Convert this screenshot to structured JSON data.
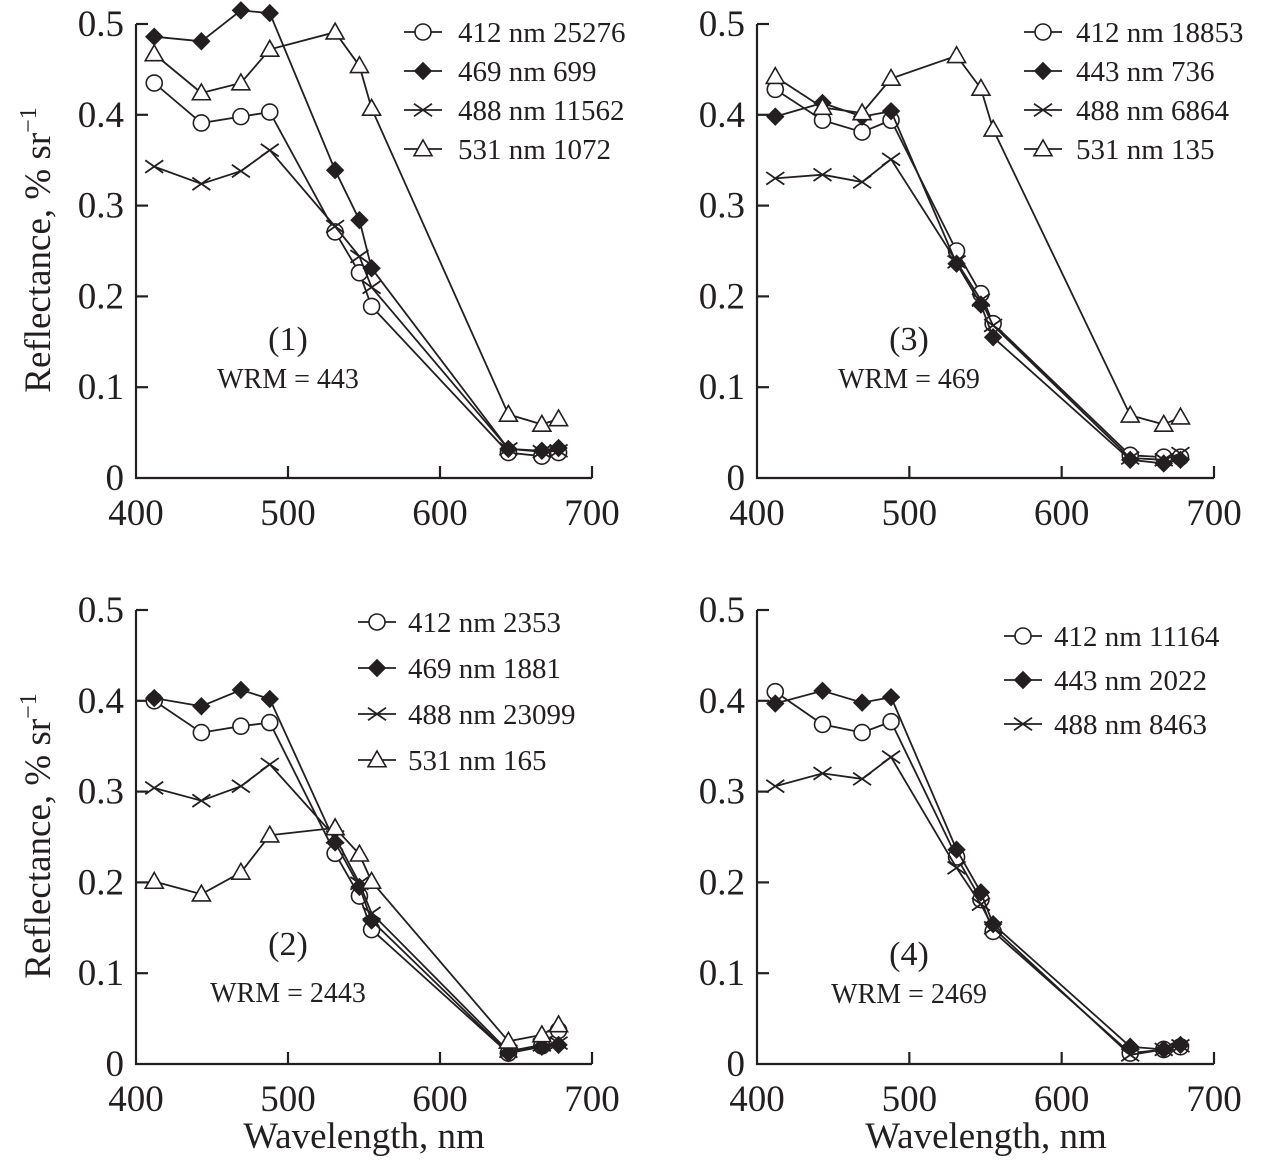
{
  "chart_data": [
    {
      "type": "line",
      "panel_label": "(1)",
      "annotation": "WRM = 443",
      "xlabel": "",
      "ylabel": "Reflectance, % sr",
      "ylabel_superscript": "−1",
      "xlim": [
        400,
        700
      ],
      "ylim": [
        0,
        0.5
      ],
      "xticks": [
        "400",
        "500",
        "600",
        "700"
      ],
      "yticks": [
        "0",
        "0.1",
        "0.2",
        "0.3",
        "0.4",
        "0.5"
      ],
      "legend_position": "top-right",
      "x": [
        412,
        443,
        469,
        488,
        531,
        547,
        555,
        645,
        667,
        678
      ],
      "series": [
        {
          "name": "412 nm 25276",
          "marker": "circle",
          "values": [
            0.435,
            0.391,
            0.398,
            0.403,
            0.271,
            0.226,
            0.189,
            0.028,
            0.024,
            0.028
          ]
        },
        {
          "name": "469 nm 699",
          "marker": "diamond",
          "values": [
            0.486,
            0.481,
            0.515,
            0.512,
            0.339,
            0.284,
            0.231,
            0.032,
            0.03,
            0.033
          ]
        },
        {
          "name": "488 nm 11562",
          "marker": "x",
          "values": [
            0.343,
            0.324,
            0.338,
            0.361,
            0.277,
            0.244,
            0.21,
            0.032,
            0.029,
            0.03
          ]
        },
        {
          "name": "531 nm 1072",
          "marker": "triangle",
          "values": [
            0.467,
            0.424,
            0.435,
            0.472,
            0.491,
            0.454,
            0.407,
            0.07,
            0.059,
            0.065
          ]
        }
      ]
    },
    {
      "type": "line",
      "panel_label": "(3)",
      "annotation": "WRM = 469",
      "xlabel": "",
      "ylabel": "",
      "xlim": [
        400,
        700
      ],
      "ylim": [
        0,
        0.5
      ],
      "xticks": [
        "400",
        "500",
        "600",
        "700"
      ],
      "yticks": [
        "0",
        "0.1",
        "0.2",
        "0.3",
        "0.4",
        "0.5"
      ],
      "legend_position": "top-right",
      "x": [
        412,
        443,
        469,
        488,
        531,
        547,
        555,
        645,
        667,
        678
      ],
      "series": [
        {
          "name": "412 nm 18853",
          "marker": "circle",
          "values": [
            0.428,
            0.394,
            0.381,
            0.394,
            0.25,
            0.203,
            0.17,
            0.025,
            0.023,
            0.023
          ]
        },
        {
          "name": "443 nm 736",
          "marker": "diamond",
          "values": [
            0.398,
            0.413,
            0.398,
            0.404,
            0.236,
            0.191,
            0.155,
            0.02,
            0.016,
            0.02
          ]
        },
        {
          "name": "488 nm 6864",
          "marker": "x",
          "values": [
            0.33,
            0.334,
            0.326,
            0.351,
            0.238,
            0.196,
            0.168,
            0.022,
            0.02,
            0.027
          ]
        },
        {
          "name": "531 nm 135",
          "marker": "triangle",
          "values": [
            0.442,
            0.408,
            0.402,
            0.44,
            0.465,
            0.429,
            0.384,
            0.069,
            0.059,
            0.067
          ]
        }
      ]
    },
    {
      "type": "line",
      "panel_label": "(2)",
      "annotation": "WRM = 2443",
      "xlabel": "Wavelength, nm",
      "ylabel": "Reflectance, % sr",
      "ylabel_superscript": "−1",
      "xlim": [
        400,
        700
      ],
      "ylim": [
        0,
        0.5
      ],
      "xticks": [
        "400",
        "500",
        "600",
        "700"
      ],
      "yticks": [
        "0",
        "0.1",
        "0.2",
        "0.3",
        "0.4",
        "0.5"
      ],
      "legend_position": "top-right",
      "x": [
        412,
        443,
        469,
        488,
        531,
        547,
        555,
        645,
        667,
        678
      ],
      "series": [
        {
          "name": "412 nm 2353",
          "marker": "circle",
          "values": [
            0.4,
            0.365,
            0.372,
            0.376,
            0.232,
            0.185,
            0.148,
            0.012,
            0.02,
            0.037
          ]
        },
        {
          "name": "469 nm 1881",
          "marker": "diamond",
          "values": [
            0.403,
            0.394,
            0.412,
            0.402,
            0.244,
            0.195,
            0.158,
            0.012,
            0.019,
            0.021
          ]
        },
        {
          "name": "488 nm 23099",
          "marker": "x",
          "values": [
            0.304,
            0.29,
            0.306,
            0.33,
            0.25,
            0.199,
            0.166,
            0.014,
            0.021,
            0.023
          ]
        },
        {
          "name": "531 nm 165",
          "marker": "triangle",
          "values": [
            0.201,
            0.187,
            0.211,
            0.252,
            0.26,
            0.231,
            0.201,
            0.025,
            0.032,
            0.043
          ]
        }
      ]
    },
    {
      "type": "line",
      "panel_label": "(4)",
      "annotation": "WRM = 2469",
      "xlabel": "Wavelength, nm",
      "ylabel": "",
      "xlim": [
        400,
        700
      ],
      "ylim": [
        0,
        0.5
      ],
      "xticks": [
        "400",
        "500",
        "600",
        "700"
      ],
      "yticks": [
        "0",
        "0.1",
        "0.2",
        "0.3",
        "0.4",
        "0.5"
      ],
      "legend_position": "top-right",
      "x": [
        412,
        443,
        469,
        488,
        531,
        547,
        555,
        645,
        667,
        678
      ],
      "series": [
        {
          "name": "412 nm 11164",
          "marker": "circle",
          "values": [
            0.41,
            0.374,
            0.365,
            0.377,
            0.228,
            0.181,
            0.146,
            0.012,
            0.016,
            0.019
          ]
        },
        {
          "name": "443 nm 2022",
          "marker": "diamond",
          "values": [
            0.397,
            0.411,
            0.398,
            0.404,
            0.236,
            0.189,
            0.154,
            0.019,
            0.016,
            0.021
          ]
        },
        {
          "name": "488 nm 8463",
          "marker": "x",
          "values": [
            0.306,
            0.32,
            0.314,
            0.338,
            0.216,
            0.176,
            0.15,
            0.01,
            0.016,
            0.02
          ]
        }
      ]
    }
  ]
}
